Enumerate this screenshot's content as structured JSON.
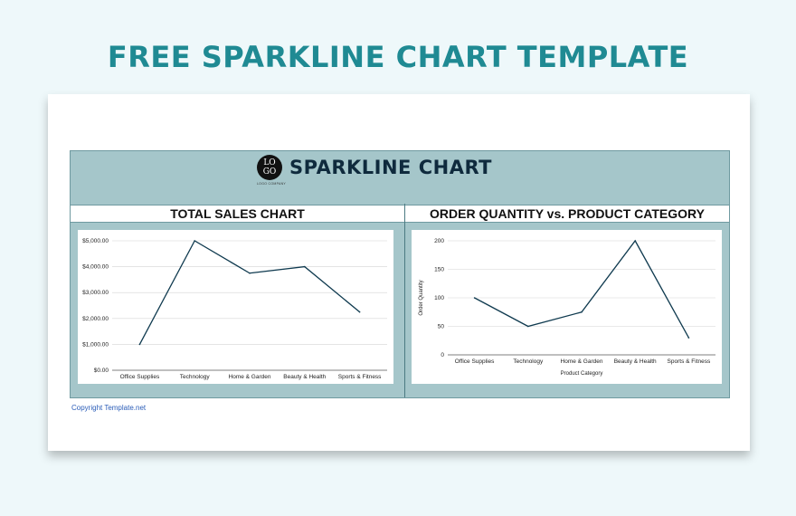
{
  "page_title": "FREE SPARKLINE CHART TEMPLATE",
  "logo": {
    "line1": "LO",
    "line2": "GO",
    "subtext": "LOGO COMPANY"
  },
  "brand_title": "SPARKLINE CHART",
  "copyright": "Copyright Template.net",
  "colors": {
    "title": "#1f8a93",
    "band": "#a5c6ca",
    "line": "#0f3a4f",
    "brand": "#0f2a3d"
  },
  "chart_data": [
    {
      "type": "line",
      "title": "TOTAL SALES CHART",
      "categories": [
        "Office Supplies",
        "Technology",
        "Home & Garden",
        "Beauty & Health",
        "Sports & Fitness"
      ],
      "values": [
        1000,
        5000,
        3750,
        4000,
        2250
      ],
      "yticks": [
        "$0.00",
        "$1,000.00",
        "$2,000.00",
        "$3,000.00",
        "$4,000.00",
        "$5,000.00"
      ],
      "ylim": [
        0,
        5000
      ],
      "xlabel": "",
      "ylabel": "",
      "grid": true
    },
    {
      "type": "line",
      "title": "ORDER QUANTITY vs. PRODUCT CATEGORY",
      "categories": [
        "Office Supplies",
        "Technology",
        "Home & Garden",
        "Beauty & Health",
        "Sports & Fitness"
      ],
      "values": [
        100,
        50,
        75,
        200,
        30
      ],
      "yticks": [
        "0",
        "50",
        "100",
        "150",
        "200"
      ],
      "ylim": [
        0,
        200
      ],
      "xlabel": "Product Category",
      "ylabel": "Order Quantity",
      "grid": true
    }
  ]
}
